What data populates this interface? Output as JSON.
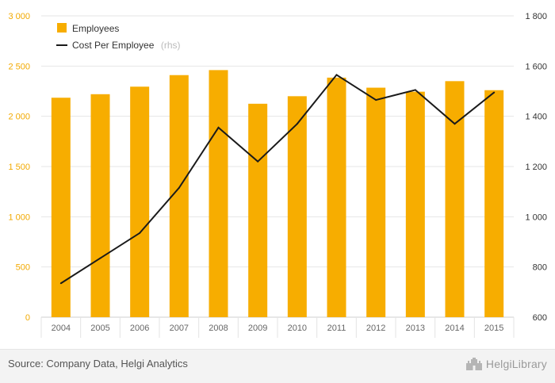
{
  "chart_data": {
    "type": "bar",
    "categories": [
      "2004",
      "2005",
      "2006",
      "2007",
      "2008",
      "2009",
      "2010",
      "2011",
      "2012",
      "2013",
      "2014",
      "2015"
    ],
    "series": [
      {
        "name": "Employees",
        "type": "bar",
        "axis": "left",
        "values": [
          2185,
          2220,
          2295,
          2410,
          2460,
          2125,
          2200,
          2385,
          2285,
          2245,
          2350,
          2260
        ]
      },
      {
        "name": "Cost Per Employee",
        "name_suffix": "(rhs)",
        "type": "line",
        "axis": "right",
        "values": [
          735,
          835,
          935,
          1115,
          1355,
          1220,
          1370,
          1565,
          1465,
          1505,
          1370,
          1495
        ]
      }
    ],
    "y_left": {
      "min": 0,
      "max": 3000,
      "ticks": [
        0,
        500,
        1000,
        1500,
        2000,
        2500,
        3000
      ],
      "tick_labels": [
        "0",
        "500",
        "1 000",
        "1 500",
        "2 000",
        "2 500",
        "3 000"
      ]
    },
    "y_right": {
      "min": 600,
      "max": 1800,
      "ticks": [
        600,
        800,
        1000,
        1200,
        1400,
        1600,
        1800
      ],
      "tick_labels": [
        "600",
        "800",
        "1 000",
        "1 200",
        "1 400",
        "1 600",
        "1 800"
      ]
    },
    "grid": true,
    "legend": "top-left",
    "colors": {
      "bar": "#f7ad00",
      "line": "#1a1a1a",
      "left_ticks": "#f2a900",
      "grid": "#e6e6e6"
    }
  },
  "footer": {
    "source": "Source: Company Data, Helgi Analytics",
    "brand": "HelgiLibrary",
    "brand_icon": "castle-icon"
  }
}
